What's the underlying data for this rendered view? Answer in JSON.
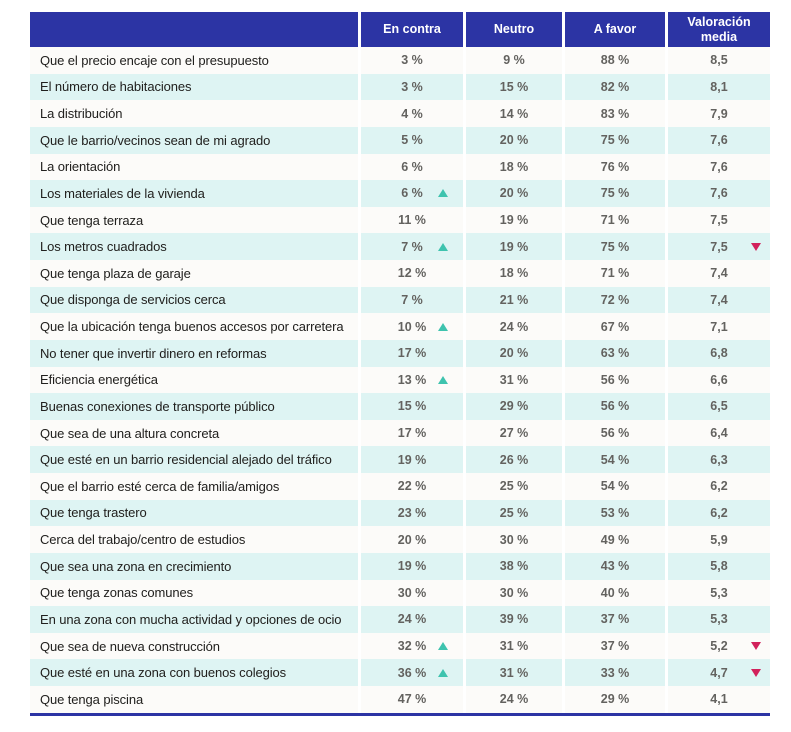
{
  "colors": {
    "header_bg": "#2c34a4",
    "alt_row_bg": "#def4f3",
    "up_marker": "#3ec3ae",
    "down_marker": "#d2215b",
    "label_text": "#21201e",
    "value_text": "#63625f"
  },
  "chart_data": {
    "type": "table",
    "columns": [
      "En contra",
      "Neutro",
      "A favor",
      "Valoración media"
    ],
    "marker_legend": {
      "up": "teal up-triangle next to En contra value",
      "down": "crimson down-triangle next to Valoración media value"
    },
    "rows": [
      {
        "label": "Que el precio encaje con el presupuesto",
        "en_contra": "3 %",
        "neutro": "9 %",
        "a_favor": "88 %",
        "media": "8,5",
        "marker_en_contra": null,
        "marker_media": null
      },
      {
        "label": "El número de habitaciones",
        "en_contra": "3 %",
        "neutro": "15 %",
        "a_favor": "82 %",
        "media": "8,1",
        "marker_en_contra": null,
        "marker_media": null
      },
      {
        "label": "La distribución",
        "en_contra": "4 %",
        "neutro": "14 %",
        "a_favor": "83 %",
        "media": "7,9",
        "marker_en_contra": null,
        "marker_media": null
      },
      {
        "label": "Que le barrio/vecinos sean de mi agrado",
        "en_contra": "5 %",
        "neutro": "20 %",
        "a_favor": "75 %",
        "media": "7,6",
        "marker_en_contra": null,
        "marker_media": null
      },
      {
        "label": "La orientación",
        "en_contra": "6 %",
        "neutro": "18 %",
        "a_favor": "76 %",
        "media": "7,6",
        "marker_en_contra": null,
        "marker_media": null
      },
      {
        "label": "Los materiales de la vivienda",
        "en_contra": "6 %",
        "neutro": "20 %",
        "a_favor": "75 %",
        "media": "7,6",
        "marker_en_contra": "up",
        "marker_media": null
      },
      {
        "label": "Que tenga terraza",
        "en_contra": "11 %",
        "neutro": "19 %",
        "a_favor": "71 %",
        "media": "7,5",
        "marker_en_contra": null,
        "marker_media": null
      },
      {
        "label": "Los metros cuadrados",
        "en_contra": "7 %",
        "neutro": "19 %",
        "a_favor": "75 %",
        "media": "7,5",
        "marker_en_contra": "up",
        "marker_media": "down"
      },
      {
        "label": "Que tenga plaza de garaje",
        "en_contra": "12 %",
        "neutro": "18 %",
        "a_favor": "71 %",
        "media": "7,4",
        "marker_en_contra": null,
        "marker_media": null
      },
      {
        "label": "Que disponga de servicios cerca",
        "en_contra": "7 %",
        "neutro": "21 %",
        "a_favor": "72 %",
        "media": "7,4",
        "marker_en_contra": null,
        "marker_media": null
      },
      {
        "label": "Que la ubicación tenga buenos accesos por carretera",
        "en_contra": "10 %",
        "neutro": "24 %",
        "a_favor": "67 %",
        "media": "7,1",
        "marker_en_contra": "up",
        "marker_media": null
      },
      {
        "label": "No tener que invertir dinero en reformas",
        "en_contra": "17 %",
        "neutro": "20 %",
        "a_favor": "63 %",
        "media": "6,8",
        "marker_en_contra": null,
        "marker_media": null
      },
      {
        "label": "Eficiencia energética",
        "en_contra": "13 %",
        "neutro": "31 %",
        "a_favor": "56 %",
        "media": "6,6",
        "marker_en_contra": "up",
        "marker_media": null
      },
      {
        "label": "Buenas conexiones de transporte público",
        "en_contra": "15 %",
        "neutro": "29 %",
        "a_favor": "56 %",
        "media": "6,5",
        "marker_en_contra": null,
        "marker_media": null
      },
      {
        "label": "Que sea de una altura concreta",
        "en_contra": "17 %",
        "neutro": "27 %",
        "a_favor": "56 %",
        "media": "6,4",
        "marker_en_contra": null,
        "marker_media": null
      },
      {
        "label": "Que esté en un barrio residencial alejado del tráfico",
        "en_contra": "19 %",
        "neutro": "26 %",
        "a_favor": "54 %",
        "media": "6,3",
        "marker_en_contra": null,
        "marker_media": null
      },
      {
        "label": "Que el barrio esté cerca de familia/amigos",
        "en_contra": "22 %",
        "neutro": "25 %",
        "a_favor": "54 %",
        "media": "6,2",
        "marker_en_contra": null,
        "marker_media": null
      },
      {
        "label": "Que tenga trastero",
        "en_contra": "23 %",
        "neutro": "25 %",
        "a_favor": "53 %",
        "media": "6,2",
        "marker_en_contra": null,
        "marker_media": null
      },
      {
        "label": "Cerca del trabajo/centro de estudios",
        "en_contra": "20 %",
        "neutro": "30 %",
        "a_favor": "49 %",
        "media": "5,9",
        "marker_en_contra": null,
        "marker_media": null
      },
      {
        "label": "Que sea una zona en crecimiento",
        "en_contra": "19 %",
        "neutro": "38 %",
        "a_favor": "43 %",
        "media": "5,8",
        "marker_en_contra": null,
        "marker_media": null
      },
      {
        "label": "Que tenga zonas comunes",
        "en_contra": "30 %",
        "neutro": "30 %",
        "a_favor": "40 %",
        "media": "5,3",
        "marker_en_contra": null,
        "marker_media": null
      },
      {
        "label": "En una zona con mucha actividad y opciones de ocio",
        "en_contra": "24 %",
        "neutro": "39 %",
        "a_favor": "37 %",
        "media": "5,3",
        "marker_en_contra": null,
        "marker_media": null
      },
      {
        "label": "Que sea de nueva construcción",
        "en_contra": "32 %",
        "neutro": "31 %",
        "a_favor": "37 %",
        "media": "5,2",
        "marker_en_contra": "up",
        "marker_media": "down"
      },
      {
        "label": "Que esté en una zona con buenos colegios",
        "en_contra": "36 %",
        "neutro": "31 %",
        "a_favor": "33 %",
        "media": "4,7",
        "marker_en_contra": "up",
        "marker_media": "down"
      },
      {
        "label": "Que tenga piscina",
        "en_contra": "47 %",
        "neutro": "24 %",
        "a_favor": "29 %",
        "media": "4,1",
        "marker_en_contra": null,
        "marker_media": null
      }
    ]
  }
}
